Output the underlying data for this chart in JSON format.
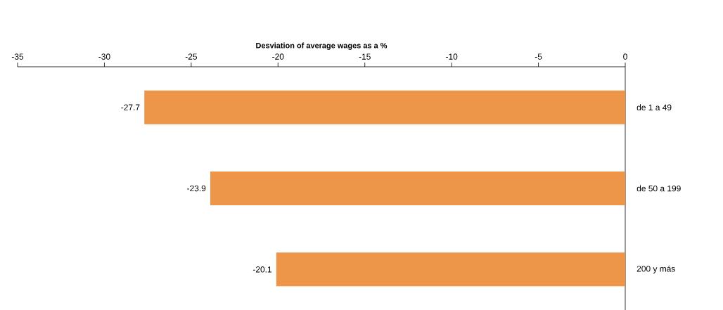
{
  "chart_data": {
    "type": "bar",
    "orientation": "horizontal",
    "title": "Desviation of average wages as a %",
    "categories": [
      "de 1 a 49",
      "de 50 a 199",
      "200 y más"
    ],
    "values": [
      -27.7,
      -23.9,
      -20.1
    ],
    "color": "#ed9549",
    "xlim": [
      -35,
      0
    ],
    "xticks": [
      -35,
      -30,
      -25,
      -20,
      -15,
      -10,
      -5,
      0
    ],
    "data_labels": true
  }
}
